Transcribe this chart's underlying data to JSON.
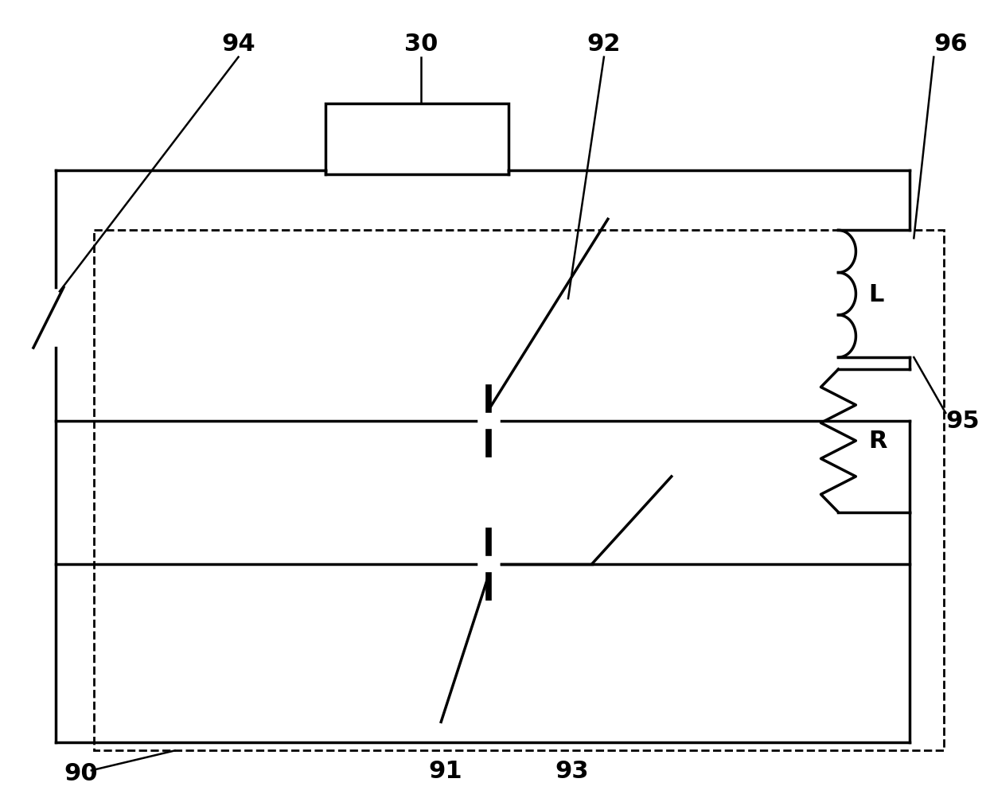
{
  "fig_width": 12.39,
  "fig_height": 10.04,
  "dpi": 100,
  "bg_color": "#ffffff",
  "lc": "#000000",
  "lw": 2.5,
  "label_fs": 22
}
